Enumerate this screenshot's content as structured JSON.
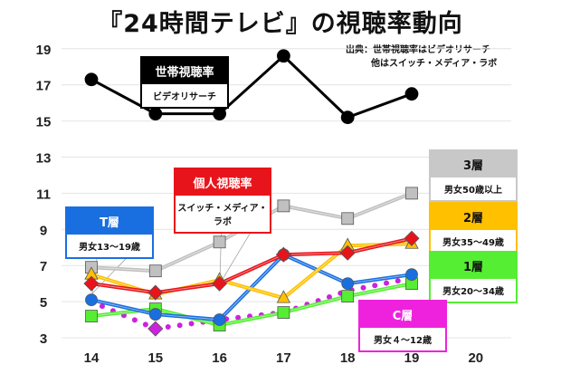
{
  "title": "『24時間テレビ』の視聴率動向",
  "source": [
    "出典：世帯視聴率はビデオリサーチ",
    "他はスイッチ・メディア・ラボ"
  ],
  "labels": {
    "household": {
      "head": "世帯視聴率",
      "sub": "ビデオリサーチ",
      "color": "#000000"
    },
    "personal": {
      "head": "個人視聴率",
      "sub": "スイッチ・メディア・ラボ",
      "color": "#e8141b"
    },
    "t": {
      "head": "T層",
      "sub": "男女13〜19歳",
      "color": "#1a6fe0"
    },
    "l3": {
      "head": "3層",
      "sub": "男女50歳以上",
      "color": "#c8c8c8"
    },
    "l2": {
      "head": "2層",
      "sub": "男女35〜49歳",
      "color": "#ffc000"
    },
    "l1": {
      "head": "1層",
      "sub": "男女20〜34歳",
      "color": "#55ee33"
    },
    "c": {
      "head": "C層",
      "sub": "男女４〜12歳",
      "color": "#ee22dd"
    }
  },
  "chart_data": {
    "type": "line",
    "x": [
      14,
      15,
      16,
      17,
      18,
      19
    ],
    "xticks": [
      "14",
      "15",
      "16",
      "17",
      "18",
      "19",
      "20"
    ],
    "yticks": [
      "3",
      "5",
      "7",
      "9",
      "11",
      "13",
      "15",
      "17",
      "19"
    ],
    "ylim": [
      3,
      19
    ],
    "xlim": [
      14,
      20
    ],
    "grid": true,
    "series": [
      {
        "name": "世帯視聴率",
        "color": "#000000",
        "marker": "circle",
        "values": [
          17.3,
          15.4,
          15.4,
          18.6,
          15.2,
          16.5
        ]
      },
      {
        "name": "3層",
        "color": "#c0c0c0",
        "marker": "square",
        "values": [
          6.9,
          6.7,
          8.3,
          10.3,
          9.6,
          11.0
        ]
      },
      {
        "name": "2層",
        "color": "#ffc000",
        "marker": "triangle",
        "values": [
          6.5,
          5.4,
          6.2,
          5.2,
          8.1,
          8.2
        ]
      },
      {
        "name": "個人視聴率",
        "color": "#e8141b",
        "marker": "diamond",
        "values": [
          6.0,
          5.5,
          6.0,
          7.6,
          7.7,
          8.5
        ]
      },
      {
        "name": "T層",
        "color": "#1a6fe0",
        "marker": "circle",
        "values": [
          5.1,
          4.3,
          4.0,
          7.6,
          6.0,
          6.5
        ]
      },
      {
        "name": "1層",
        "color": "#55ee33",
        "marker": "square",
        "values": [
          4.2,
          4.6,
          3.7,
          4.4,
          5.3,
          6.0
        ]
      },
      {
        "name": "C層",
        "color": "#cc22dd",
        "marker": "diamond",
        "dotted": true,
        "values": [
          5.0,
          3.5,
          4.0,
          4.4,
          5.6,
          6.3
        ]
      }
    ]
  }
}
